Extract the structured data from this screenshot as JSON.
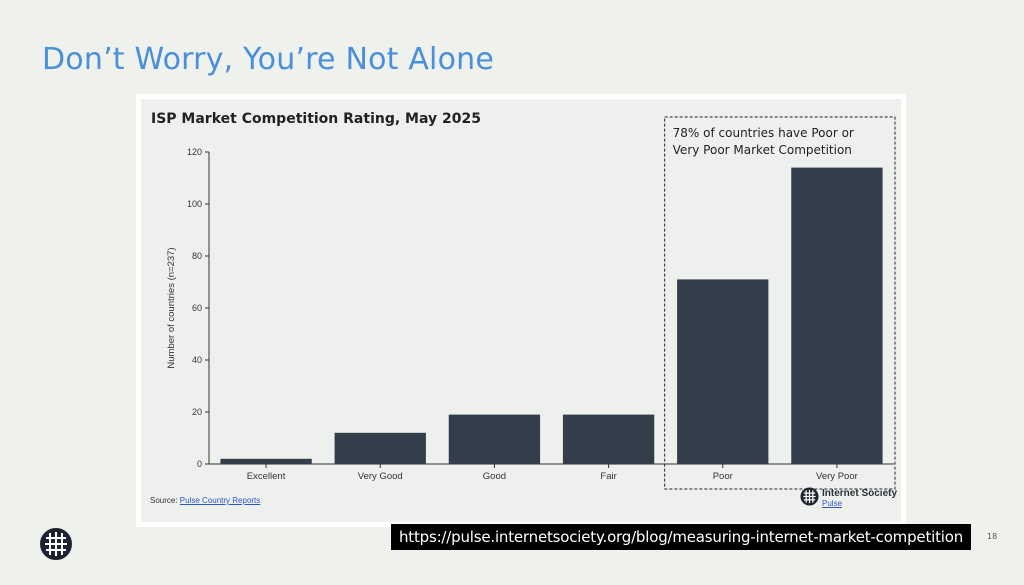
{
  "slide": {
    "title": "Don’t Worry, You’re Not Alone",
    "url": "https://pulse.internetsociety.org/blog/measuring-internet-market-competition",
    "page_number": "18"
  },
  "source": {
    "prefix": "Source: ",
    "link_text": "Pulse Country Reports"
  },
  "brand": {
    "name": "Internet Society",
    "sub": "Pulse"
  },
  "icons": {
    "slide_logo": "globe-grid-icon",
    "brand_logo": "globe-grid-icon"
  },
  "colors": {
    "title": "#4a8fd9",
    "bar": "#343e4a",
    "panel": "#eef0ee"
  },
  "chart_data": {
    "type": "bar",
    "title": "ISP Market Competition Rating, May 2025",
    "xlabel": "",
    "ylabel": "Number of countries (n=237)",
    "categories": [
      "Excellent",
      "Very Good",
      "Good",
      "Fair",
      "Poor",
      "Very Poor"
    ],
    "values": [
      2,
      12,
      19,
      19,
      71,
      114
    ],
    "ylim": [
      0,
      120
    ],
    "yticks": [
      0,
      20,
      40,
      60,
      80,
      100,
      120
    ],
    "grid": false,
    "annotation": {
      "line1": "78% of countries have Poor or",
      "line2": "Very Poor Market Competition",
      "highlight_categories": [
        "Poor",
        "Very Poor"
      ]
    }
  }
}
